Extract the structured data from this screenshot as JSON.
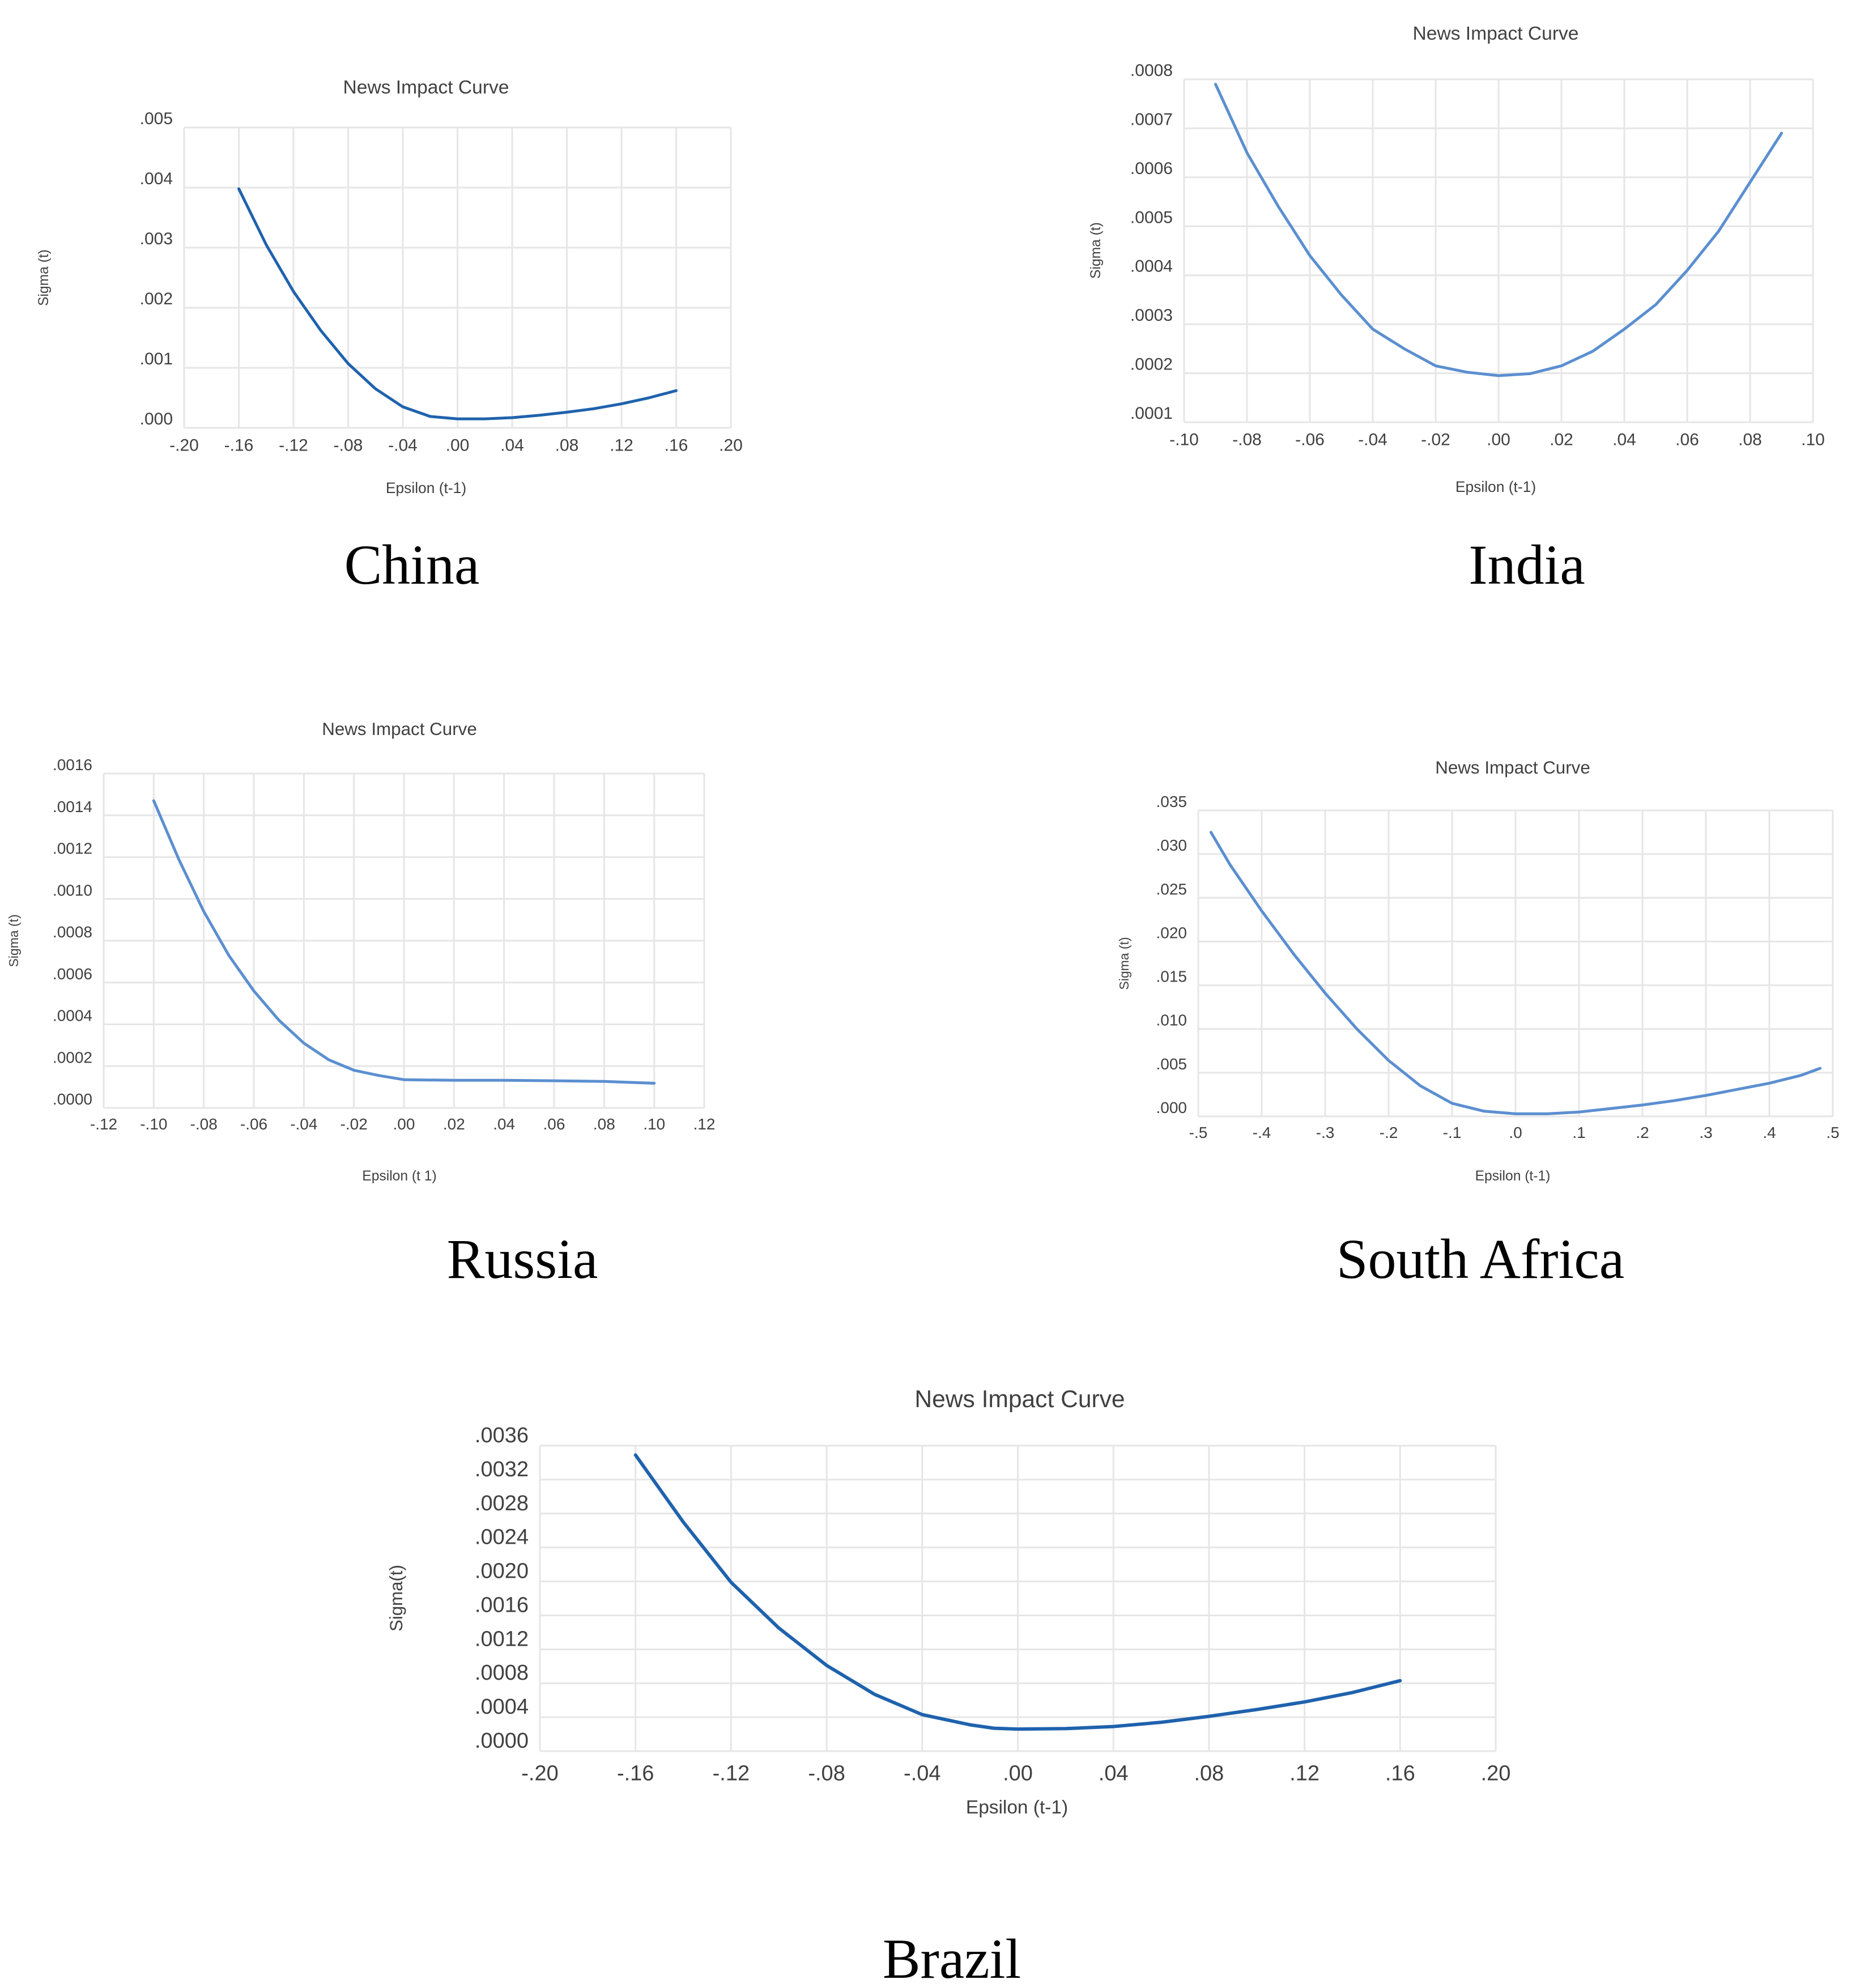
{
  "chart_data": [
    {
      "type": "line",
      "title": "News Impact Curve",
      "xlabel": "Epsilon (t-1)",
      "ylabel": "Sigma (t)",
      "caption": "China",
      "xlim": [
        -0.2,
        0.2
      ],
      "ylim": [
        0,
        0.005
      ],
      "xticks": [
        "-.20",
        "-.16",
        "-.12",
        "-.08",
        "-.04",
        ".00",
        ".04",
        ".08",
        ".12",
        ".16",
        ".20"
      ],
      "yticks": [
        ".000",
        ".001",
        ".002",
        ".003",
        ".004",
        ".005"
      ],
      "grid": true,
      "color": "#1f62ad",
      "series": [
        {
          "x": [
            -0.16,
            -0.14,
            -0.12,
            -0.1,
            -0.08,
            -0.06,
            -0.04,
            -0.02,
            0.0,
            0.02,
            0.04,
            0.06,
            0.08,
            0.1,
            0.12,
            0.14,
            0.16
          ],
          "y": [
            0.00398,
            0.00305,
            0.00227,
            0.00162,
            0.00107,
            0.00065,
            0.00035,
            0.00019,
            0.00015,
            0.00015,
            0.00017,
            0.00021,
            0.00026,
            0.00032,
            0.0004,
            0.0005,
            0.00062
          ]
        }
      ]
    },
    {
      "type": "line",
      "title": "News Impact Curve",
      "xlabel": "Epsilon (t-1)",
      "ylabel": "Sigma (t)",
      "caption": "India",
      "xlim": [
        -0.1,
        0.1
      ],
      "ylim": [
        0.0001,
        0.0008
      ],
      "xticks": [
        "-.10",
        "-.08",
        "-.06",
        "-.04",
        "-.02",
        ".00",
        ".02",
        ".04",
        ".06",
        ".08",
        ".10"
      ],
      "yticks": [
        ".0001",
        ".0002",
        ".0003",
        ".0004",
        ".0005",
        ".0006",
        ".0007",
        ".0008"
      ],
      "grid": true,
      "color": "#5b8fd0",
      "series": [
        {
          "x": [
            -0.09,
            -0.08,
            -0.07,
            -0.06,
            -0.05,
            -0.04,
            -0.03,
            -0.02,
            -0.01,
            0.0,
            0.01,
            0.02,
            0.03,
            0.04,
            0.05,
            0.06,
            0.07,
            0.08,
            0.09
          ],
          "y": [
            0.00079,
            0.00065,
            0.00054,
            0.00044,
            0.00036,
            0.00029,
            0.00025,
            0.000215,
            0.000202,
            0.000195,
            0.000199,
            0.000215,
            0.000245,
            0.00029,
            0.00034,
            0.00041,
            0.00049,
            0.00059,
            0.00069
          ]
        }
      ]
    },
    {
      "type": "line",
      "title": "News Impact Curve",
      "xlabel": "Epsilon (t 1)",
      "ylabel": "Sigma (t)",
      "caption": "Russia",
      "xlim": [
        -0.12,
        0.12
      ],
      "ylim": [
        0,
        0.0016
      ],
      "xticks": [
        "-.12",
        "-.10",
        "-.08",
        "-.06",
        "-.04",
        "-.02",
        ".00",
        ".02",
        ".04",
        ".06",
        ".08",
        ".10",
        ".12"
      ],
      "yticks": [
        ".0000",
        ".0002",
        ".0004",
        ".0006",
        ".0008",
        ".0010",
        ".0012",
        ".0014",
        ".0016"
      ],
      "grid": true,
      "color": "#5b8fd0",
      "series": [
        {
          "x": [
            -0.1,
            -0.09,
            -0.08,
            -0.07,
            -0.06,
            -0.05,
            -0.04,
            -0.03,
            -0.02,
            -0.01,
            0.0,
            0.02,
            0.04,
            0.06,
            0.08,
            0.1
          ],
          "y": [
            0.00147,
            0.00119,
            0.00094,
            0.00073,
            0.00056,
            0.00042,
            0.00031,
            0.00023,
            0.00018,
            0.000155,
            0.000135,
            0.000132,
            0.000132,
            0.00013,
            0.000127,
            0.000118
          ]
        }
      ]
    },
    {
      "type": "line",
      "title": "News Impact Curve",
      "xlabel": "Epsilon (t-1)",
      "ylabel": "Sigma (t)",
      "caption": "South Africa",
      "xlim": [
        -0.5,
        0.5
      ],
      "ylim": [
        0,
        0.035
      ],
      "xticks": [
        "-.5",
        "-.4",
        "-.3",
        "-.2",
        "-.1",
        ".0",
        ".1",
        ".2",
        ".3",
        ".4",
        ".5"
      ],
      "yticks": [
        ".000",
        ".005",
        ".010",
        ".015",
        ".020",
        ".025",
        ".030",
        ".035"
      ],
      "grid": true,
      "color": "#5b8fd0",
      "series": [
        {
          "x": [
            -0.48,
            -0.45,
            -0.4,
            -0.35,
            -0.3,
            -0.25,
            -0.2,
            -0.15,
            -0.1,
            -0.05,
            0.0,
            0.05,
            0.1,
            0.15,
            0.2,
            0.25,
            0.3,
            0.35,
            0.4,
            0.45,
            0.48
          ],
          "y": [
            0.0325,
            0.0288,
            0.0235,
            0.0186,
            0.0141,
            0.01,
            0.0064,
            0.0035,
            0.0015,
            0.0006,
            0.0003,
            0.0003,
            0.0005,
            0.0009,
            0.0013,
            0.0018,
            0.0024,
            0.0031,
            0.0038,
            0.0047,
            0.0055
          ]
        }
      ]
    },
    {
      "type": "line",
      "title": "News Impact Curve",
      "xlabel": "Epsilon (t-1)",
      "ylabel": "Sigma(t)",
      "caption": "Brazil",
      "xlim": [
        -0.2,
        0.2
      ],
      "ylim": [
        0,
        0.0036
      ],
      "xticks": [
        "-.20",
        "-.16",
        "-.12",
        "-.08",
        "-.04",
        ".00",
        ".04",
        ".08",
        ".12",
        ".16",
        ".20"
      ],
      "yticks": [
        ".0000",
        ".0004",
        ".0008",
        ".0012",
        ".0016",
        ".0020",
        ".0024",
        ".0028",
        ".0032",
        ".0036"
      ],
      "grid": true,
      "color": "#1f62ad",
      "series": [
        {
          "x": [
            -0.16,
            -0.14,
            -0.12,
            -0.1,
            -0.08,
            -0.06,
            -0.04,
            -0.02,
            -0.01,
            0.0,
            0.02,
            0.04,
            0.06,
            0.08,
            0.1,
            0.12,
            0.14,
            0.16
          ],
          "y": [
            0.00349,
            0.0027,
            0.00199,
            0.00145,
            0.00101,
            0.00067,
            0.00043,
            0.00031,
            0.00027,
            0.00026,
            0.000265,
            0.00029,
            0.00034,
            0.00041,
            0.00049,
            0.00058,
            0.00069,
            0.00083
          ]
        }
      ]
    }
  ]
}
